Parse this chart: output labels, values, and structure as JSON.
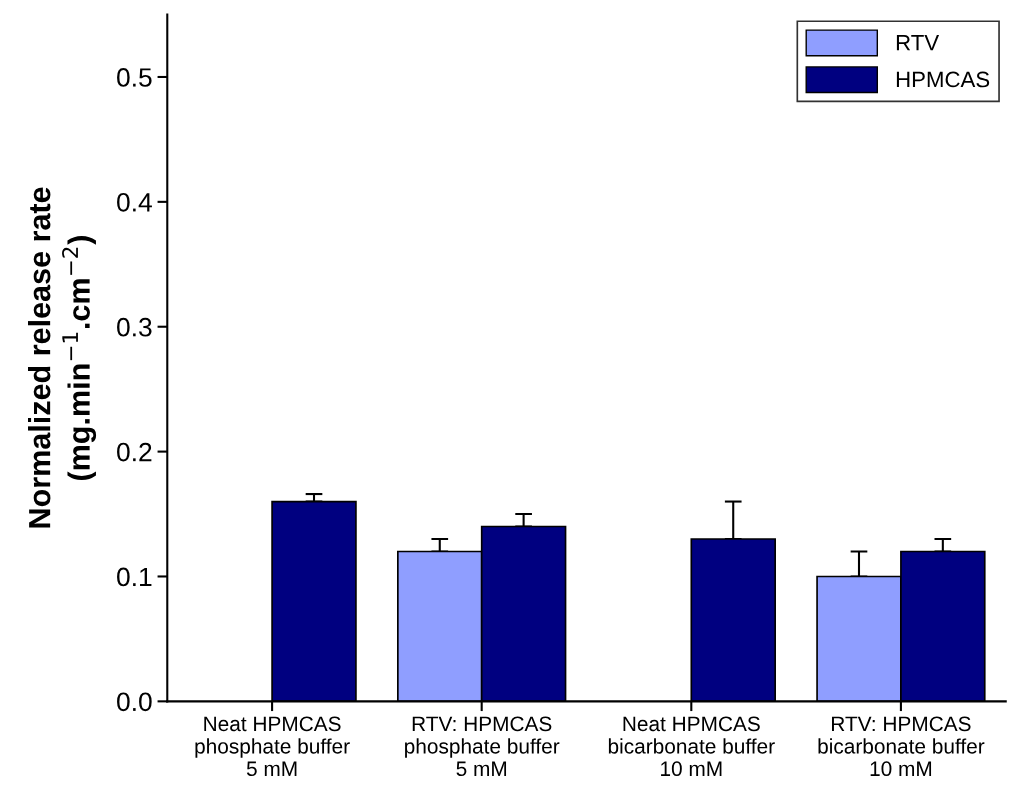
{
  "chart_data": {
    "type": "bar",
    "ylabel": "Normalized release rate\n(mg.min$^{−1}$.cm$^{−2}$)",
    "categories": [
      "Neat HPMCAS\nphosphate buffer\n5 mM",
      "RTV: HPMCAS\nphosphate buffer\n5 mM",
      "Neat HPMCAS\nbicarbonate buffer\n10 mM",
      "RTV: HPMCAS\nbicarbonate buffer\n10 mM"
    ],
    "series": [
      {
        "name": "RTV",
        "color": "#8f9eff",
        "values": [
          null,
          0.12,
          null,
          0.1
        ],
        "errors": [
          null,
          [
            0.12,
            0.13
          ],
          null,
          [
            0.1,
            0.12
          ]
        ]
      },
      {
        "name": "HPMCAS",
        "color": "#000080",
        "values": [
          0.16,
          0.14,
          0.13,
          0.12
        ],
        "errors": [
          [
            0.16,
            0.166
          ],
          [
            0.14,
            0.15
          ],
          [
            0.13,
            0.16
          ],
          [
            0.12,
            0.13
          ]
        ]
      }
    ],
    "ylim": [
      0,
      0.55
    ],
    "yticks": [
      {
        "value": 0,
        "label": "0.0"
      },
      {
        "value": 0.1,
        "label": "0.1"
      },
      {
        "value": 0.2,
        "label": "0.2"
      },
      {
        "value": 0.3,
        "label": "0.3"
      },
      {
        "value": 0.4,
        "label": "0.4"
      },
      {
        "value": 0.5,
        "label": "0.5"
      }
    ],
    "grid": false,
    "legend": "top right"
  }
}
